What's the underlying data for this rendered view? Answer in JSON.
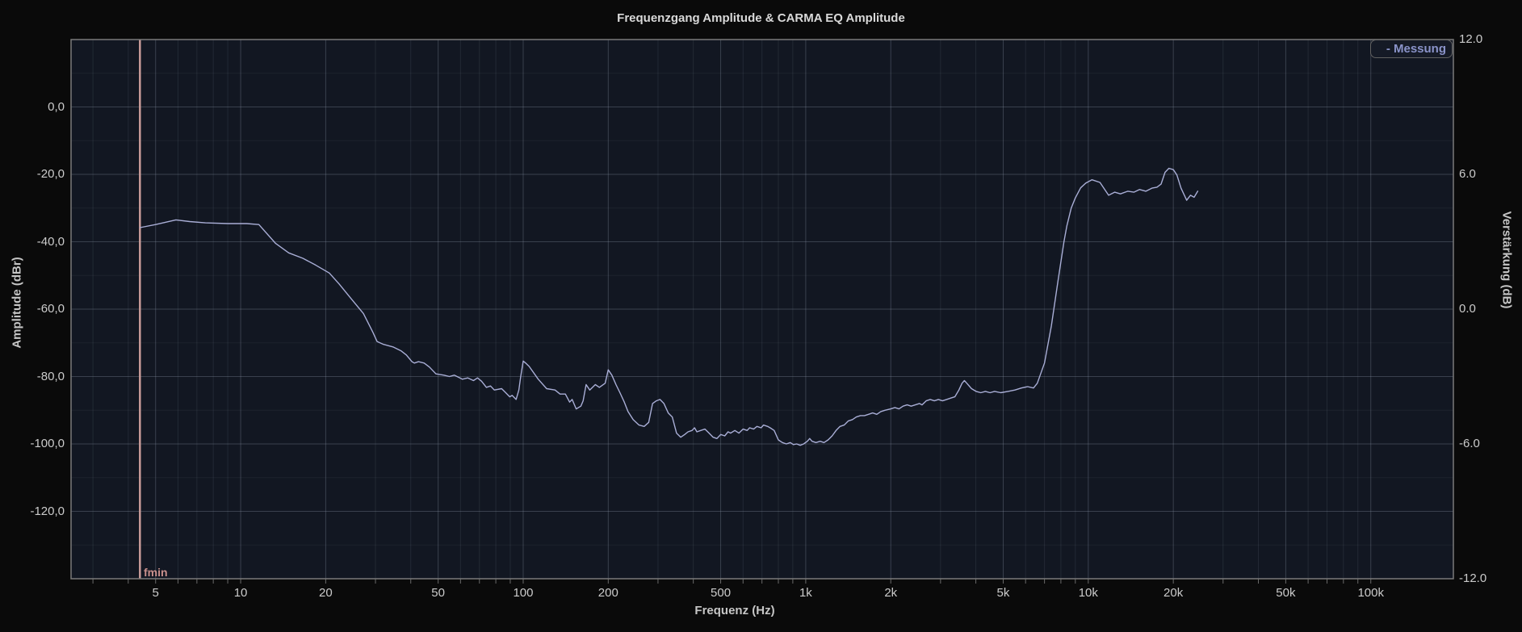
{
  "title": "Frequenzgang Amplitude & CARMA EQ Amplitude",
  "legend": {
    "label": "- Messung",
    "color": "#8a93c9"
  },
  "marker": {
    "label": "fmin",
    "freq_hz": 4.4,
    "color": "#cfa09d"
  },
  "axes": {
    "x": {
      "label": "Frequenz (Hz)",
      "scale": "log",
      "min_hz": 2.51,
      "max_hz": 196000,
      "major_ticks": [
        {
          "hz": 5,
          "label": "5"
        },
        {
          "hz": 10,
          "label": "10"
        },
        {
          "hz": 20,
          "label": "20"
        },
        {
          "hz": 50,
          "label": "50"
        },
        {
          "hz": 100,
          "label": "100"
        },
        {
          "hz": 200,
          "label": "200"
        },
        {
          "hz": 500,
          "label": "500"
        },
        {
          "hz": 1000,
          "label": "1k"
        },
        {
          "hz": 2000,
          "label": "2k"
        },
        {
          "hz": 5000,
          "label": "5k"
        },
        {
          "hz": 10000,
          "label": "10k"
        },
        {
          "hz": 20000,
          "label": "20k"
        },
        {
          "hz": 50000,
          "label": "50k"
        },
        {
          "hz": 100000,
          "label": "100k"
        }
      ],
      "minor_ticks": [
        3,
        4,
        6,
        7,
        8,
        9,
        30,
        40,
        60,
        70,
        80,
        90,
        300,
        400,
        600,
        700,
        800,
        900,
        3000,
        4000,
        6000,
        7000,
        8000,
        9000,
        30000,
        40000,
        60000,
        70000,
        80000,
        90000
      ]
    },
    "y_left": {
      "label": "Amplitude (dBr)",
      "min_db": -140,
      "max_db": 20,
      "ticks": [
        {
          "db": 0,
          "label": "0,0"
        },
        {
          "db": -20,
          "label": "-20,0"
        },
        {
          "db": -40,
          "label": "-40,0"
        },
        {
          "db": -60,
          "label": "-60,0"
        },
        {
          "db": -80,
          "label": "-80,0"
        },
        {
          "db": -100,
          "label": "-100,0"
        },
        {
          "db": -120,
          "label": "-120,0"
        }
      ]
    },
    "y_right": {
      "label": "Verstärkung (dB)",
      "min_db": -12,
      "max_db": 12,
      "ticks": [
        {
          "db": 12,
          "label": "12.0"
        },
        {
          "db": 6,
          "label": "6.0"
        },
        {
          "db": 0,
          "label": "0.0"
        },
        {
          "db": -6,
          "label": "-6.0"
        },
        {
          "db": -12,
          "label": "-12.0"
        }
      ]
    }
  },
  "colors": {
    "page_bg": "#0a0a0a",
    "plot_bg": "#121722",
    "plot_border": "#7a7a7a",
    "grid_major": "rgba(150,160,180,0.30)",
    "grid_minor": "rgba(150,160,180,0.13)",
    "grid_h_minor": "rgba(150,160,180,0.08)",
    "tick_stub": "#6a6a6a",
    "curve": "#a9aed6",
    "fmin_line": "#cfa09d"
  },
  "chart_data": {
    "type": "line",
    "title": "Frequenzgang Amplitude & CARMA EQ Amplitude",
    "xlabel": "Frequenz (Hz)",
    "x_scale": "log",
    "x_range_hz": [
      2.51,
      196000
    ],
    "ylabel_left": "Amplitude (dBr)",
    "y_left_range_dbr": [
      -140,
      20
    ],
    "ylabel_right": "Verstärkung (dB)",
    "y_right_range_db": [
      -12,
      12
    ],
    "grid": true,
    "legend_position": "top-right",
    "markers": [
      {
        "name": "fmin",
        "hz": 4.4
      }
    ],
    "series": [
      {
        "name": "Messung",
        "color": "#a9aed6",
        "axis": "left",
        "points_hz_dbr": [
          [
            4.4,
            -35.8
          ],
          [
            5,
            -34.9
          ],
          [
            5.9,
            -33.5
          ],
          [
            6.6,
            -34.0
          ],
          [
            7.5,
            -34.4
          ],
          [
            9,
            -34.6
          ],
          [
            10.5,
            -34.6
          ],
          [
            11.6,
            -34.9
          ],
          [
            13.3,
            -40.5
          ],
          [
            14.8,
            -43.3
          ],
          [
            16.6,
            -44.9
          ],
          [
            18.4,
            -46.9
          ],
          [
            20.6,
            -49.3
          ],
          [
            22.3,
            -52.5
          ],
          [
            24.6,
            -56.9
          ],
          [
            27.2,
            -61.3
          ],
          [
            29.4,
            -66.9
          ],
          [
            30.4,
            -69.6
          ],
          [
            31.9,
            -70.4
          ],
          [
            34.6,
            -71.2
          ],
          [
            37,
            -72.4
          ],
          [
            38.6,
            -73.6
          ],
          [
            40.4,
            -75.6
          ],
          [
            41.2,
            -76.0
          ],
          [
            42.6,
            -75.6
          ],
          [
            44.6,
            -76.0
          ],
          [
            46.6,
            -77.2
          ],
          [
            49.1,
            -79.2
          ],
          [
            52.4,
            -79.6
          ],
          [
            54.8,
            -80.0
          ],
          [
            57,
            -79.6
          ],
          [
            60.9,
            -80.8
          ],
          [
            63.7,
            -80.4
          ],
          [
            66.7,
            -81.2
          ],
          [
            68.9,
            -80.4
          ],
          [
            71.2,
            -81.4
          ],
          [
            74.1,
            -83.2
          ],
          [
            76.6,
            -82.8
          ],
          [
            79,
            -84.0
          ],
          [
            83.9,
            -83.6
          ],
          [
            86.7,
            -84.8
          ],
          [
            89.6,
            -86.0
          ],
          [
            91.4,
            -85.6
          ],
          [
            94.4,
            -86.8
          ],
          [
            96.5,
            -84.0
          ],
          [
            98,
            -80.0
          ],
          [
            100,
            -75.4
          ],
          [
            102,
            -76.0
          ],
          [
            105,
            -77.0
          ],
          [
            113,
            -80.8
          ],
          [
            121,
            -83.6
          ],
          [
            129.6,
            -84.0
          ],
          [
            135,
            -85.2
          ],
          [
            141,
            -85.2
          ],
          [
            146,
            -87.6
          ],
          [
            149,
            -86.8
          ],
          [
            154,
            -89.6
          ],
          [
            160,
            -88.8
          ],
          [
            163,
            -87.2
          ],
          [
            167,
            -82.4
          ],
          [
            172,
            -84.0
          ],
          [
            180,
            -82.4
          ],
          [
            186,
            -83.2
          ],
          [
            195,
            -82.0
          ],
          [
            200,
            -78.0
          ],
          [
            206,
            -79.6
          ],
          [
            213,
            -82.4
          ],
          [
            220,
            -84.8
          ],
          [
            228,
            -87.6
          ],
          [
            235,
            -90.4
          ],
          [
            245,
            -92.8
          ],
          [
            257,
            -94.4
          ],
          [
            268,
            -94.8
          ],
          [
            278,
            -93.6
          ],
          [
            287,
            -88.0
          ],
          [
            296,
            -87.2
          ],
          [
            305,
            -86.8
          ],
          [
            315,
            -88.0
          ],
          [
            326,
            -90.8
          ],
          [
            337,
            -92.0
          ],
          [
            349,
            -96.8
          ],
          [
            361,
            -98.0
          ],
          [
            373,
            -97.2
          ],
          [
            383,
            -96.4
          ],
          [
            396,
            -96.0
          ],
          [
            404,
            -95.2
          ],
          [
            412,
            -96.4
          ],
          [
            425,
            -96.0
          ],
          [
            440,
            -95.6
          ],
          [
            455,
            -96.8
          ],
          [
            470,
            -98.0
          ],
          [
            485,
            -98.4
          ],
          [
            500,
            -97.2
          ],
          [
            517,
            -97.6
          ],
          [
            531,
            -96.4
          ],
          [
            542,
            -96.8
          ],
          [
            561,
            -96.0
          ],
          [
            580,
            -96.8
          ],
          [
            600,
            -95.6
          ],
          [
            620,
            -96.0
          ],
          [
            633,
            -95.2
          ],
          [
            654,
            -95.6
          ],
          [
            672,
            -94.8
          ],
          [
            695,
            -95.2
          ],
          [
            709,
            -94.4
          ],
          [
            733,
            -94.8
          ],
          [
            748,
            -95.2
          ],
          [
            773,
            -96.0
          ],
          [
            800,
            -98.8
          ],
          [
            827,
            -99.6
          ],
          [
            854,
            -100.0
          ],
          [
            882,
            -99.6
          ],
          [
            904,
            -100.2
          ],
          [
            929,
            -100.0
          ],
          [
            956,
            -100.4
          ],
          [
            983,
            -100.0
          ],
          [
            1013,
            -99.2
          ],
          [
            1033,
            -98.4
          ],
          [
            1053,
            -99.2
          ],
          [
            1087,
            -99.6
          ],
          [
            1124,
            -99.2
          ],
          [
            1160,
            -99.6
          ],
          [
            1200,
            -98.8
          ],
          [
            1240,
            -97.6
          ],
          [
            1281,
            -96.0
          ],
          [
            1323,
            -94.8
          ],
          [
            1368,
            -94.4
          ],
          [
            1414,
            -93.2
          ],
          [
            1462,
            -92.8
          ],
          [
            1511,
            -92.0
          ],
          [
            1562,
            -91.6
          ],
          [
            1615,
            -91.6
          ],
          [
            1669,
            -91.2
          ],
          [
            1726,
            -90.8
          ],
          [
            1784,
            -91.2
          ],
          [
            1844,
            -90.4
          ],
          [
            1907,
            -90.0
          ],
          [
            2000,
            -89.6
          ],
          [
            2068,
            -89.2
          ],
          [
            2138,
            -89.6
          ],
          [
            2210,
            -88.8
          ],
          [
            2285,
            -88.4
          ],
          [
            2362,
            -88.8
          ],
          [
            2442,
            -88.4
          ],
          [
            2525,
            -88.0
          ],
          [
            2581,
            -88.4
          ],
          [
            2669,
            -87.2
          ],
          [
            2759,
            -86.8
          ],
          [
            2852,
            -87.2
          ],
          [
            2949,
            -86.8
          ],
          [
            3049,
            -87.2
          ],
          [
            3153,
            -86.8
          ],
          [
            3260,
            -86.4
          ],
          [
            3371,
            -86.0
          ],
          [
            3485,
            -84.0
          ],
          [
            3576,
            -82.0
          ],
          [
            3645,
            -81.2
          ],
          [
            3716,
            -82.0
          ],
          [
            3860,
            -83.6
          ],
          [
            4009,
            -84.4
          ],
          [
            4164,
            -84.8
          ],
          [
            4325,
            -84.4
          ],
          [
            4491,
            -84.8
          ],
          [
            4662,
            -84.4
          ],
          [
            4900,
            -84.8
          ],
          [
            5200,
            -84.4
          ],
          [
            5500,
            -84.0
          ],
          [
            5800,
            -83.4
          ],
          [
            6100,
            -83.0
          ],
          [
            6400,
            -83.4
          ],
          [
            6600,
            -82.0
          ],
          [
            7000,
            -76.0
          ],
          [
            7400,
            -65.0
          ],
          [
            7800,
            -52.0
          ],
          [
            8200,
            -40.0
          ],
          [
            8400,
            -35.3
          ],
          [
            8700,
            -30.0
          ],
          [
            9000,
            -27.0
          ],
          [
            9400,
            -24.0
          ],
          [
            9800,
            -22.6
          ],
          [
            10300,
            -21.6
          ],
          [
            11000,
            -22.4
          ],
          [
            11800,
            -26.2
          ],
          [
            12400,
            -25.3
          ],
          [
            13000,
            -25.8
          ],
          [
            13800,
            -25.0
          ],
          [
            14500,
            -25.3
          ],
          [
            15200,
            -24.5
          ],
          [
            16000,
            -25.0
          ],
          [
            16800,
            -24.1
          ],
          [
            17500,
            -23.8
          ],
          [
            18100,
            -22.9
          ],
          [
            18700,
            -19.4
          ],
          [
            19300,
            -18.2
          ],
          [
            20000,
            -18.6
          ],
          [
            20600,
            -20.2
          ],
          [
            21300,
            -24.1
          ],
          [
            22300,
            -27.7
          ],
          [
            23000,
            -26.2
          ],
          [
            23700,
            -26.8
          ],
          [
            24400,
            -25.0
          ]
        ]
      }
    ]
  }
}
